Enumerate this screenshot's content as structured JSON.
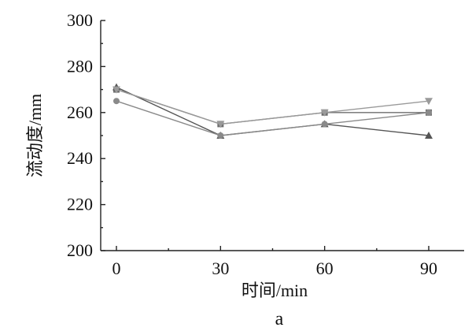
{
  "chart_data": {
    "type": "line",
    "xlabel": "时间/min",
    "ylabel": "流动度/mm",
    "panel_label": "a",
    "xlim": [
      -5,
      98
    ],
    "ylim": [
      200,
      300
    ],
    "x_ticks": [
      0,
      30,
      60,
      90
    ],
    "y_ticks": [
      200,
      220,
      240,
      260,
      280,
      300
    ],
    "x_tick_labels": [
      "0",
      "30",
      "60",
      "90"
    ],
    "y_tick_labels": [
      "200",
      "220",
      "240",
      "260",
      "280",
      "300"
    ],
    "grid": false,
    "legend": "none",
    "series": [
      {
        "marker": "square",
        "color": "#6e6e6e",
        "x": [
          0,
          30,
          60,
          90
        ],
        "values": [
          270,
          255,
          260,
          260
        ]
      },
      {
        "marker": "triangle-up",
        "color": "#555555",
        "x": [
          0,
          30,
          60,
          90
        ],
        "values": [
          271,
          250,
          255,
          250
        ]
      },
      {
        "marker": "circle",
        "color": "#8a8a8a",
        "x": [
          0,
          30,
          60,
          90
        ],
        "values": [
          265,
          250,
          255,
          260
        ]
      },
      {
        "marker": "triangle-down",
        "color": "#9a9a9a",
        "x": [
          0,
          30,
          60,
          90
        ],
        "values": [
          270,
          255,
          260,
          265
        ]
      }
    ]
  }
}
